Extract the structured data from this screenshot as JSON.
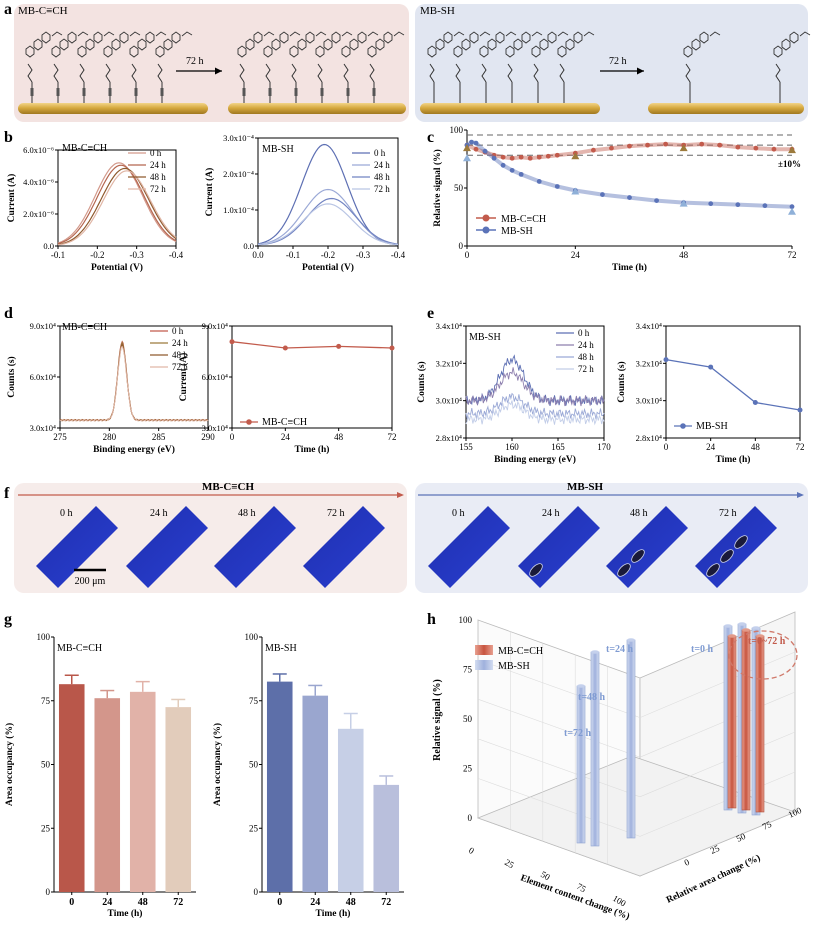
{
  "colors": {
    "red": "#c25b4c",
    "blue": "#5b73b8",
    "olive": "#9c7a3c",
    "panel_a_left_bg": "#f3e3e1",
    "panel_a_right_bg": "#e1e6f1",
    "f_left_bg": "#f6ecea",
    "f_right_bg": "#e9ecf5"
  },
  "panel_a": {
    "letter": "a",
    "left_label": "MB-C≡CH",
    "right_label": "MB-SH",
    "arrow_left": "72 h",
    "arrow_right": "72 h"
  },
  "chart_data": [
    {
      "id": "b-left",
      "letter": "b",
      "type": "line",
      "annotation": "MB-C≡CH",
      "xlabel": "Potential (V)",
      "ylabel": "Current (A)",
      "xlim": [
        -0.1,
        -0.4
      ],
      "ylim": [
        0,
        6e-06
      ],
      "xticks": [
        "-0.1",
        "-0.2",
        "-0.3",
        "-0.4"
      ],
      "yticks": [
        "0.0",
        "2.0x10⁻⁶",
        "4.0x10⁻⁶",
        "6.0x10⁻⁶"
      ],
      "series": [
        {
          "name": "0 h",
          "peak_x": -0.255,
          "peak_y": 5.2e-06,
          "width": 0.06,
          "color": "#d39a8c"
        },
        {
          "name": "24 h",
          "peak_x": -0.26,
          "peak_y": 5.05e-06,
          "width": 0.06,
          "color": "#b5664f"
        },
        {
          "name": "48 h",
          "peak_x": -0.27,
          "peak_y": 4.85e-06,
          "width": 0.06,
          "color": "#8f5a2e"
        },
        {
          "name": "72 h",
          "peak_x": -0.275,
          "peak_y": 4.7e-06,
          "width": 0.06,
          "color": "#e0b6a6"
        }
      ]
    },
    {
      "id": "b-right",
      "type": "line",
      "annotation": "MB-SH",
      "xlabel": "Potential (V)",
      "ylabel": "Current (A)",
      "xlim": [
        0.0,
        -0.4
      ],
      "ylim": [
        0,
        0.0003
      ],
      "xticks": [
        "0.0",
        "-0.1",
        "-0.2",
        "-0.3",
        "-0.4"
      ],
      "yticks": [
        "0.0",
        "1.0x10⁻⁴",
        "2.0x10⁻⁴",
        "3.0x10⁻⁴"
      ],
      "series": [
        {
          "name": "0 h",
          "peak_x": -0.19,
          "peak_y": 0.00028,
          "width": 0.065,
          "color": "#5d6fb3"
        },
        {
          "name": "24 h",
          "peak_x": -0.2,
          "peak_y": 0.000155,
          "width": 0.07,
          "color": "#9ba9d6"
        },
        {
          "name": "48 h",
          "peak_x": -0.21,
          "peak_y": 0.00013,
          "width": 0.07,
          "color": "#7284c2"
        },
        {
          "name": "72 h",
          "peak_x": -0.2,
          "peak_y": 0.000115,
          "width": 0.07,
          "color": "#b9c5e4"
        }
      ]
    },
    {
      "id": "c",
      "letter": "c",
      "type": "line",
      "xlabel": "Time (h)",
      "ylabel": "Relative signal (%)",
      "xlim": [
        0,
        72
      ],
      "ylim": [
        0,
        115
      ],
      "xticks": [
        "0",
        "24",
        "48",
        "72"
      ],
      "yticks": [
        "0",
        "50",
        "100"
      ],
      "reference_lines": [
        90,
        100,
        110
      ],
      "reference_label": "±10%",
      "series": [
        {
          "name": "MB-C≡CH",
          "color": "#c25b4c",
          "x": [
            0,
            2,
            4,
            6,
            8,
            10,
            12,
            14,
            16,
            18,
            20,
            24,
            28,
            32,
            36,
            40,
            44,
            48,
            52,
            56,
            60,
            64,
            68,
            72
          ],
          "y": [
            100,
            96,
            93,
            90,
            88,
            87,
            88,
            87,
            88,
            89,
            90,
            92,
            95,
            97,
            99,
            100,
            101,
            100,
            101,
            100,
            98,
            97,
            96,
            96
          ]
        },
        {
          "name": "MB-SH",
          "color": "#5b73b8",
          "x": [
            0,
            1,
            2,
            4,
            6,
            8,
            10,
            12,
            16,
            20,
            24,
            30,
            36,
            42,
            48,
            54,
            60,
            66,
            72
          ],
          "y": [
            100,
            103,
            102,
            94,
            87,
            80,
            75,
            71,
            64,
            59,
            55,
            51,
            48,
            45,
            43,
            42,
            41,
            40,
            39
          ]
        }
      ],
      "markers": {
        "x": [
          0,
          24,
          48,
          72
        ],
        "red_y": [
          97,
          89,
          97,
          95
        ],
        "blue_y": [
          87,
          54,
          42,
          34
        ]
      }
    },
    {
      "id": "d-left",
      "letter": "d",
      "type": "line",
      "annotation": "MB-C≡CH",
      "xlabel": "Binding energy (eV)",
      "ylabel": "Counts (s)",
      "xlim": [
        275,
        290
      ],
      "ylim": [
        25000.0,
        90000.0
      ],
      "xticks": [
        "275",
        "280",
        "285",
        "290"
      ],
      "yticks": [
        "3.0x10⁴",
        "6.0x10⁴",
        "9.0x10⁴"
      ],
      "series": [
        {
          "name": "0 h",
          "peak_x": 281.3,
          "peak_y": 80000.0,
          "color": "#c25b4c"
        },
        {
          "name": "24 h",
          "peak_x": 281.3,
          "peak_y": 79000.0,
          "color": "#9c7a3c"
        },
        {
          "name": "48 h",
          "peak_x": 281.3,
          "peak_y": 78000.0,
          "color": "#8f5a2e"
        },
        {
          "name": "72 h",
          "peak_x": 281.3,
          "peak_y": 77000.0,
          "color": "#e0b6a6"
        }
      ],
      "baseline": 30000.0
    },
    {
      "id": "d-right",
      "type": "line",
      "xlabel": "Time (h)",
      "ylabel": "Current (A)",
      "xlim": [
        0,
        72
      ],
      "ylim": [
        25000.0,
        90000.0
      ],
      "xticks": [
        "0",
        "24",
        "48",
        "72"
      ],
      "yticks": [
        "3.0x10⁴",
        "6.0x10⁴",
        "9.0x10⁴"
      ],
      "series": [
        {
          "name": "MB-C≡CH",
          "color": "#c25b4c",
          "x": [
            0,
            24,
            48,
            72
          ],
          "y": [
            80000.0,
            76000.0,
            77000.0,
            76000.0
          ]
        }
      ]
    },
    {
      "id": "e-left",
      "letter": "e",
      "type": "line",
      "annotation": "MB-SH",
      "xlabel": "Binding energy (eV)",
      "ylabel": "Counts (s)",
      "xlim": [
        155,
        170
      ],
      "ylim": [
        28000.0,
        34000.0
      ],
      "xticks": [
        "155",
        "160",
        "165",
        "170"
      ],
      "yticks": [
        "2.8x10⁴",
        "3.0x10⁴",
        "3.2x10⁴",
        "3.4x10⁴"
      ],
      "series": [
        {
          "name": "0 h",
          "peak_x": 160,
          "peak_y": 32200.0,
          "base": 30000.0,
          "color": "#5d6fb3"
        },
        {
          "name": "24 h",
          "peak_x": 160,
          "peak_y": 31500.0,
          "base": 30000.0,
          "color": "#8d7fae"
        },
        {
          "name": "48 h",
          "peak_x": 160,
          "peak_y": 30200.0,
          "base": 29300.0,
          "color": "#9ba9d6"
        },
        {
          "name": "72 h",
          "peak_x": 160,
          "peak_y": 29800.0,
          "base": 29000.0,
          "color": "#c2cde8"
        }
      ]
    },
    {
      "id": "e-right",
      "type": "line",
      "xlabel": "Time (h)",
      "ylabel": "Counts (s)",
      "xlim": [
        0,
        72
      ],
      "ylim": [
        28000.0,
        34000.0
      ],
      "xticks": [
        "0",
        "24",
        "48",
        "72"
      ],
      "yticks": [
        "2.8x10⁴",
        "3.0x10⁴",
        "3.2x10⁴",
        "3.4x10⁴"
      ],
      "series": [
        {
          "name": "MB-SH",
          "color": "#5b73b8",
          "x": [
            0,
            24,
            48,
            72
          ],
          "y": [
            32200.0,
            31800.0,
            29900.0,
            29500.0
          ]
        }
      ]
    },
    {
      "id": "g-left",
      "letter": "g",
      "type": "bar",
      "annotation": "MB-C≡CH",
      "xlabel": "Time (h)",
      "ylabel": "Area occupancy (%)",
      "categories": [
        "0",
        "24",
        "48",
        "72"
      ],
      "ylim": [
        0,
        100
      ],
      "yticks": [
        "0",
        "25",
        "50",
        "75",
        "100"
      ],
      "values": [
        81.5,
        76,
        78.5,
        72.5
      ],
      "errors": [
        3.5,
        3,
        4,
        3
      ],
      "bar_colors": [
        "#b9574a",
        "#d3968b",
        "#e1b2a8",
        "#e2ccbb"
      ]
    },
    {
      "id": "g-right",
      "type": "bar",
      "annotation": "MB-SH",
      "xlabel": "Time (h)",
      "ylabel": "Area occupancy (%)",
      "categories": [
        "0",
        "24",
        "48",
        "72"
      ],
      "ylim": [
        0,
        100
      ],
      "yticks": [
        "0",
        "25",
        "50",
        "75",
        "100"
      ],
      "values": [
        82.5,
        77,
        64,
        42
      ],
      "errors": [
        3,
        4,
        6,
        3.5
      ],
      "bar_colors": [
        "#5d6fa9",
        "#9aa6cf",
        "#c6cfe6",
        "#b9bfdc"
      ]
    },
    {
      "id": "h",
      "letter": "h",
      "type": "bar",
      "title": "",
      "xlabel": "Element content change (%)",
      "ylabel": "Relative signal (%)",
      "zlabel": "Relative area change (%)",
      "yticks": [
        "0",
        "25",
        "50",
        "75",
        "100"
      ],
      "x_ticks": [
        "0",
        "25",
        "50",
        "75",
        "100"
      ],
      "z_ticks": [
        "0",
        "25",
        "50",
        "75",
        "100"
      ],
      "legend": [
        "MB-C≡CH",
        "MB-SH"
      ],
      "annotations": [
        "t=0 h",
        "t=24 h",
        "t=48 h",
        "t=72 h",
        "t=0~72 h"
      ]
    }
  ],
  "panel_f": {
    "letter": "f",
    "left_title": "MB-C≡CH",
    "right_title": "MB-SH",
    "times": [
      "0 h",
      "24 h",
      "48 h",
      "72 h"
    ],
    "scale_label": "200 μm"
  }
}
